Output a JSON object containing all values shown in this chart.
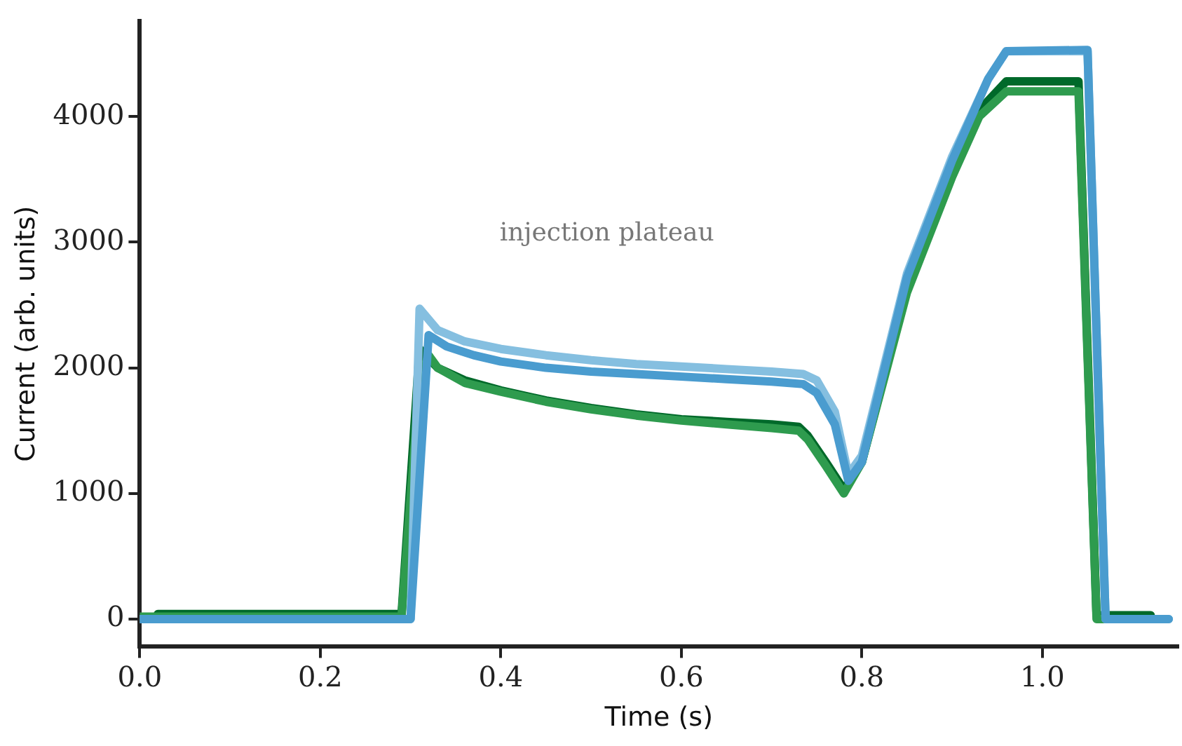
{
  "chart_data": {
    "type": "line",
    "xlabel": "Time (s)",
    "ylabel": "Current (arb. units)",
    "xlim": [
      0,
      1.15
    ],
    "xticks": [
      {
        "value": 0,
        "label": "0.0"
      },
      0.2,
      0.4,
      0.6,
      0.8,
      {
        "value": 1,
        "label": "1.0"
      }
    ],
    "ylim": [
      -220,
      4760
    ],
    "yticks": [
      0,
      1000,
      2000,
      3000,
      4000
    ],
    "grid": false,
    "legend": false,
    "marker": "none",
    "line_style": "solid",
    "annotations": [
      "injection plateau"
    ],
    "series": [
      {
        "color": "#00692a",
        "x": [
          0.02,
          0.29,
          0.31,
          0.33,
          0.36,
          0.4,
          0.45,
          0.5,
          0.55,
          0.6,
          0.65,
          0.7,
          0.73,
          0.74,
          0.76,
          0.78,
          0.8,
          0.85,
          0.9,
          0.93,
          0.96,
          1.04,
          1.06,
          1.12
        ],
        "values": [
          40,
          40,
          2150,
          2000,
          1900,
          1820,
          1740,
          1680,
          1630,
          1590,
          1570,
          1550,
          1530,
          1460,
          1250,
          1030,
          1250,
          2640,
          3560,
          4050,
          4280,
          4280,
          30,
          30
        ]
      },
      {
        "color": "#2e9b4e",
        "x": [
          0,
          0.29,
          0.31,
          0.32,
          0.33,
          0.36,
          0.4,
          0.45,
          0.5,
          0.55,
          0.6,
          0.65,
          0.7,
          0.73,
          0.74,
          0.76,
          0.78,
          0.8,
          0.85,
          0.9,
          0.93,
          0.96,
          1.04,
          1.06,
          1.12
        ],
        "values": [
          20,
          20,
          1900,
          2100,
          2000,
          1880,
          1810,
          1730,
          1670,
          1620,
          1580,
          1550,
          1520,
          1500,
          1430,
          1220,
          1000,
          1250,
          2600,
          3520,
          4000,
          4200,
          4200,
          0,
          0
        ]
      },
      {
        "color": "#85bfe0",
        "x": [
          0,
          0.3,
          0.31,
          0.33,
          0.36,
          0.4,
          0.45,
          0.5,
          0.55,
          0.6,
          0.65,
          0.7,
          0.735,
          0.75,
          0.77,
          0.785,
          0.8,
          0.85,
          0.9,
          0.94,
          0.96,
          1.05,
          1.07,
          1.14
        ],
        "values": [
          0,
          0,
          2470,
          2300,
          2210,
          2150,
          2100,
          2060,
          2030,
          2010,
          1990,
          1970,
          1950,
          1900,
          1650,
          1150,
          1300,
          2750,
          3680,
          4300,
          4520,
          4520,
          0,
          0
        ]
      },
      {
        "color": "#4a9ccf",
        "x": [
          0,
          0.3,
          0.32,
          0.34,
          0.37,
          0.4,
          0.45,
          0.5,
          0.55,
          0.6,
          0.65,
          0.7,
          0.735,
          0.75,
          0.77,
          0.785,
          0.8,
          0.85,
          0.9,
          0.94,
          0.96,
          1.05,
          1.07,
          1.14
        ],
        "values": [
          0,
          0,
          2260,
          2170,
          2100,
          2050,
          2000,
          1970,
          1950,
          1930,
          1910,
          1890,
          1870,
          1800,
          1550,
          1100,
          1250,
          2720,
          3650,
          4300,
          4520,
          4530,
          0,
          0
        ]
      }
    ]
  }
}
